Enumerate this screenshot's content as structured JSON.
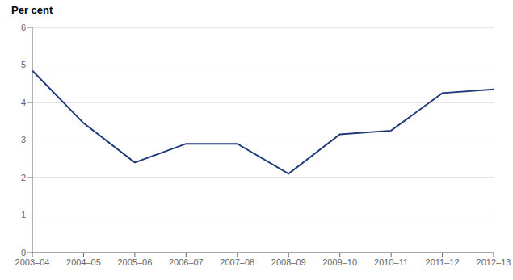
{
  "chart_data": {
    "type": "line",
    "y_label": "Per cent",
    "categories": [
      "2003–04",
      "2004–05",
      "2005–06",
      "2006–07",
      "2007–08",
      "2008–09",
      "2009–10",
      "2010–11",
      "2011–12",
      "2012–13"
    ],
    "values": [
      4.85,
      3.45,
      2.4,
      2.9,
      2.9,
      2.1,
      3.15,
      3.25,
      4.25,
      4.35
    ],
    "color": "#1f3a7a",
    "ylim": [
      0,
      6
    ],
    "yticks": [
      0,
      1,
      2,
      3,
      4,
      5,
      6
    ],
    "grid": true
  }
}
